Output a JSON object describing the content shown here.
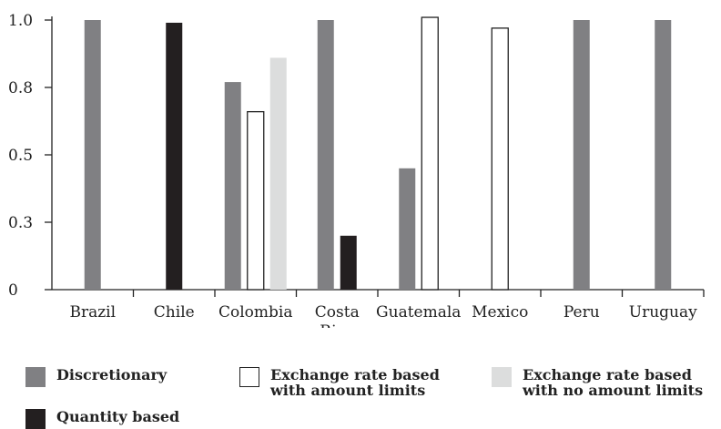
{
  "chart_data": {
    "type": "bar",
    "categories": [
      "Brazil",
      "Chile",
      "Colombia",
      "Costa\nRica",
      "Guatemala",
      "Mexico",
      "Peru",
      "Uruguay"
    ],
    "series": [
      {
        "name": "Discretionary",
        "color": "#808083",
        "stroke": "#808083",
        "values": [
          1.0,
          null,
          0.77,
          1.0,
          0.45,
          null,
          1.0,
          1.0
        ]
      },
      {
        "name": "Exchange rate based\nwith amount limits",
        "color": "#ffffff",
        "stroke": "#222222",
        "values": [
          null,
          null,
          0.66,
          null,
          1.01,
          0.97,
          null,
          null
        ]
      },
      {
        "name": "Exchange rate based\nwith no amount limits",
        "color": "#dcdddd",
        "stroke": "#dcdddd",
        "values": [
          null,
          null,
          0.86,
          null,
          null,
          null,
          null,
          null
        ]
      },
      {
        "name": "Quantity based",
        "color": "#231f20",
        "stroke": "#231f20",
        "values": [
          null,
          0.99,
          null,
          0.2,
          null,
          null,
          null,
          null
        ]
      }
    ],
    "yticks": [
      "0",
      "0.3",
      "0.5",
      "0.8",
      "1.0"
    ],
    "ytick_values": [
      0,
      0.25,
      0.5,
      0.75,
      1.0
    ],
    "ylim": [
      0,
      1.0
    ],
    "grid": false,
    "legend_position": "bottom"
  }
}
